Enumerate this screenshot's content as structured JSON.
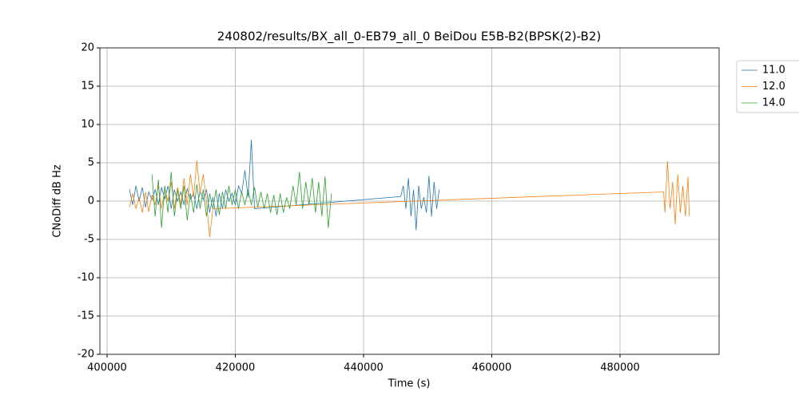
{
  "chart_data": {
    "type": "line",
    "title": "240802/results/BX_all_0-EB79_all_0 BeiDou E5B-B2(BPSK(2)-B2)",
    "xlabel": "Time (s)",
    "ylabel": "CNoDiff dB Hz",
    "xlim": [
      398880,
      495450
    ],
    "ylim": [
      -20,
      20
    ],
    "xticks": [
      400000,
      420000,
      440000,
      460000,
      480000
    ],
    "yticks": [
      -20,
      -15,
      -10,
      -5,
      0,
      5,
      10,
      15,
      20
    ],
    "grid": true,
    "legend_loc": "outside upper right",
    "series": [
      {
        "name": "11.0",
        "color": "#1f77b4",
        "x": [
          403500,
          404000,
          404500,
          405000,
          405500,
          406000,
          406500,
          407000,
          407500,
          408000,
          408500,
          409000,
          409500,
          410000,
          410500,
          411000,
          411500,
          412000,
          412500,
          413000,
          413500,
          414000,
          414500,
          415000,
          415500,
          416000,
          416500,
          417000,
          417500,
          418000,
          418500,
          419000,
          419500,
          420000,
          420500,
          421000,
          421500,
          422000,
          422500,
          423000,
          445800,
          446200,
          446600,
          447000,
          447400,
          447800,
          448200,
          448600,
          449000,
          449400,
          449800,
          450200,
          450600,
          451000,
          451400,
          451800
        ],
        "values": [
          1.5,
          -0.5,
          2,
          0,
          1.8,
          -0.8,
          1.2,
          0.2,
          1.5,
          -0.5,
          1.8,
          0.3,
          2,
          -1,
          1.5,
          0,
          1.2,
          -0.5,
          1.6,
          0.3,
          1,
          -1,
          1.3,
          0.2,
          1.5,
          -1.5,
          0.5,
          -2,
          1,
          -1,
          1.5,
          0,
          1,
          -0.5,
          2,
          1,
          4,
          0.5,
          8,
          -1,
          0.6,
          2,
          -1,
          3,
          -2,
          1.5,
          -3.8,
          2,
          -1,
          0.5,
          -1.5,
          3.3,
          -2,
          2.5,
          -1,
          1.5
        ]
      },
      {
        "name": "12.0",
        "color": "#ff7f0e",
        "x": [
          403500,
          404000,
          404500,
          405000,
          405500,
          406000,
          406500,
          407000,
          407500,
          408000,
          408500,
          409000,
          409500,
          410000,
          410500,
          411000,
          411500,
          412000,
          412500,
          413000,
          413500,
          414000,
          414500,
          415000,
          415500,
          416000,
          416500,
          435000,
          486800,
          487000,
          487400,
          487800,
          488200,
          488600,
          489000,
          489400,
          489800,
          490200,
          490600,
          490800
        ],
        "values": [
          -0.8,
          1,
          -1,
          0.5,
          -1.5,
          1.2,
          -1.4,
          0.8,
          -0.5,
          2,
          -1,
          1.5,
          0,
          2.5,
          -1,
          1.8,
          -0.5,
          3,
          -0.5,
          3.5,
          0.5,
          5.3,
          1,
          3.5,
          0,
          -4.7,
          -1,
          -0.4,
          1.2,
          -1.5,
          5.2,
          -1,
          2.5,
          -3,
          3.5,
          -1.5,
          2,
          -2,
          3.2,
          -2
        ]
      },
      {
        "name": "14.0",
        "color": "#2ca02c",
        "x": [
          407000,
          407500,
          408000,
          408500,
          409000,
          409500,
          410000,
          410500,
          411000,
          411500,
          412000,
          412500,
          413000,
          413500,
          414000,
          414500,
          415000,
          415500,
          416000,
          416500,
          417000,
          417500,
          418000,
          418500,
          419000,
          419500,
          420000,
          420500,
          421000,
          421500,
          422000,
          422500,
          423000,
          423500,
          424000,
          424500,
          425000,
          425500,
          426000,
          426500,
          427000,
          427500,
          428000,
          428500,
          429000,
          429500,
          430000,
          430500,
          431000,
          431500,
          432000,
          432500,
          433000,
          433500,
          434000,
          434500,
          435000
        ],
        "values": [
          3.5,
          -2,
          2.8,
          -3.5,
          2,
          -1.5,
          3.8,
          -2,
          1.5,
          -1,
          2,
          -2.5,
          1,
          -1.5,
          2.2,
          -1,
          1.5,
          -2,
          1,
          -1,
          1.5,
          -1.8,
          1.2,
          -1,
          2,
          -0.5,
          1.5,
          -1,
          1.2,
          -0.5,
          1.5,
          -0.5,
          1.8,
          -0.8,
          1.2,
          -1,
          1,
          -1.5,
          0.8,
          -1.8,
          1,
          -1.5,
          0.5,
          -1,
          2,
          -0.5,
          3.8,
          -1,
          2.5,
          -0.5,
          3,
          -1.5,
          2.5,
          -2,
          3.2,
          -3.5,
          1
        ]
      }
    ]
  }
}
